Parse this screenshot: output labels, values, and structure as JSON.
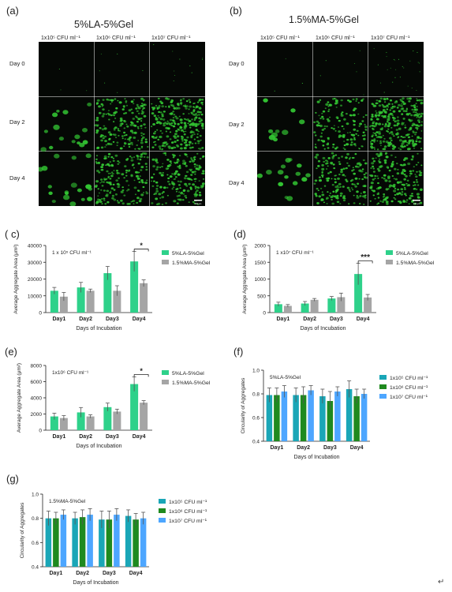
{
  "panels": {
    "a": {
      "letter": "(a)",
      "title": "5%LA-5%Gel",
      "columns": [
        "1x10⁵ CFU ml⁻¹",
        "1x10⁶ CFU ml⁻¹",
        "1x10⁷ CFU ml⁻¹"
      ],
      "rows": [
        "Day 0",
        "Day 2",
        "Day 4"
      ]
    },
    "b": {
      "letter": "(b)",
      "title": "1.5%MA-5%Gel",
      "columns": [
        "1x10⁵ CFU ml⁻¹",
        "1x10⁶ CFU ml⁻¹",
        "1x10⁷ CFU ml⁻¹"
      ],
      "rows": [
        "Day 0",
        "Day 2",
        "Day 4"
      ]
    },
    "c": {
      "letter": "( c)"
    },
    "d": {
      "letter": "(d)"
    },
    "e": {
      "letter": "(e)"
    },
    "f": {
      "letter": "(f)"
    },
    "g": {
      "letter": "(g)"
    }
  },
  "microscopy": {
    "scale_bar_label": "100 μm",
    "image_colors": {
      "background": "#050805",
      "colony": "#33c633"
    },
    "cell_density": {
      "a": [
        [
          0.01,
          0.02,
          0.03
        ],
        [
          0.25,
          0.6,
          0.85
        ],
        [
          0.3,
          0.55,
          0.6
        ]
      ],
      "b": [
        [
          0.01,
          0.02,
          0.08
        ],
        [
          0.15,
          0.45,
          0.95
        ],
        [
          0.25,
          0.55,
          0.6
        ]
      ]
    }
  },
  "chart_data": [
    {
      "id": "c",
      "type": "bar",
      "categories": [
        "Day1",
        "Day2",
        "Day3",
        "Day4"
      ],
      "series": [
        {
          "name": "5%LA-5%Gel",
          "values": [
            13000,
            15000,
            23500,
            30500
          ],
          "errors": [
            2000,
            3000,
            4000,
            6000
          ]
        },
        {
          "name": "1.5%MA-5%Gel",
          "values": [
            9500,
            13000,
            13000,
            17500
          ],
          "errors": [
            2500,
            1000,
            3000,
            2000
          ]
        }
      ],
      "annotation": "1 x 10⁵ CFU ml⁻¹",
      "significance": "*",
      "xlabel": "Days of Incubation",
      "ylabel": "Average Aggregate Area (μm²)",
      "ylim": [
        0,
        40000
      ],
      "yticks": [
        "0",
        "10000",
        "20000",
        "30000",
        "40000"
      ],
      "colors": [
        "#2ed18a",
        "#a5a5a5"
      ],
      "legend_position": "right"
    },
    {
      "id": "d",
      "type": "bar",
      "categories": [
        "Day1",
        "Day2",
        "Day3",
        "Day4"
      ],
      "series": [
        {
          "name": "5%LA-5%Gel",
          "values": [
            250,
            270,
            420,
            1150
          ],
          "errors": [
            60,
            60,
            60,
            320
          ]
        },
        {
          "name": "1.5%MA-5%Gel",
          "values": [
            200,
            380,
            460,
            450
          ],
          "errors": [
            40,
            40,
            120,
            90
          ]
        }
      ],
      "annotation": "1 x10⁷ CFU ml⁻¹",
      "significance": "***",
      "xlabel": "Days of Incubation",
      "ylabel": "Average Aggregate Area (μm²)",
      "ylim": [
        0,
        2000
      ],
      "yticks": [
        "0",
        "500",
        "1000",
        "1500",
        "2000"
      ],
      "colors": [
        "#2ed18a",
        "#a5a5a5"
      ],
      "legend_position": "right"
    },
    {
      "id": "e",
      "type": "bar",
      "categories": [
        "Day1",
        "Day2",
        "Day3",
        "Day4"
      ],
      "series": [
        {
          "name": "5%LA-5%Gel",
          "values": [
            1700,
            2200,
            2850,
            5700
          ],
          "errors": [
            400,
            600,
            500,
            900
          ]
        },
        {
          "name": "1.5%MA-5%Gel",
          "values": [
            1500,
            1700,
            2300,
            3400
          ],
          "errors": [
            300,
            200,
            300,
            250
          ]
        }
      ],
      "annotation": "1x10⁶ CFU ml⁻¹",
      "significance": "*",
      "xlabel": "Days of Incubation",
      "ylabel": "Average Aggregate Area (μm²)",
      "ylim": [
        0,
        8000
      ],
      "yticks": [
        "0",
        "2000",
        "4000",
        "6000",
        "8000"
      ],
      "colors": [
        "#2ed18a",
        "#a5a5a5"
      ],
      "legend_position": "right"
    },
    {
      "id": "f",
      "type": "bar",
      "categories": [
        "Day1",
        "Day2",
        "Day3",
        "Day4"
      ],
      "series": [
        {
          "name": "1x10⁵ CFU ml⁻¹",
          "values": [
            0.79,
            0.79,
            0.78,
            0.84
          ],
          "errors": [
            0.06,
            0.06,
            0.06,
            0.07
          ]
        },
        {
          "name": "1x10⁶ CFU ml⁻¹",
          "values": [
            0.79,
            0.79,
            0.74,
            0.78
          ],
          "errors": [
            0.06,
            0.07,
            0.08,
            0.06
          ]
        },
        {
          "name": "1x10⁷ CFU ml⁻¹",
          "values": [
            0.82,
            0.83,
            0.82,
            0.8
          ],
          "errors": [
            0.05,
            0.04,
            0.04,
            0.04
          ]
        }
      ],
      "annotation": "5%LA-5%Gel",
      "xlabel": "Days of Incubation",
      "ylabel": "Circularity of Aggregates",
      "ylim": [
        0.4,
        1.0
      ],
      "yticks": [
        "0.4",
        "0.6",
        "0.8",
        "1.0"
      ],
      "colors": [
        "#1aa6b7",
        "#1f8a1f",
        "#4da6ff"
      ],
      "legend_position": "right"
    },
    {
      "id": "g",
      "type": "bar",
      "categories": [
        "Day1",
        "Day2",
        "Day3",
        "Day4"
      ],
      "series": [
        {
          "name": "1x10⁵ CFU ml⁻¹",
          "values": [
            0.8,
            0.8,
            0.79,
            0.82
          ],
          "errors": [
            0.06,
            0.05,
            0.07,
            0.05
          ]
        },
        {
          "name": "1x10⁶ CFU ml⁻¹",
          "values": [
            0.8,
            0.81,
            0.79,
            0.79
          ],
          "errors": [
            0.05,
            0.06,
            0.07,
            0.05
          ]
        },
        {
          "name": "1x10⁷ CFU ml⁻¹",
          "values": [
            0.83,
            0.83,
            0.83,
            0.8
          ],
          "errors": [
            0.04,
            0.05,
            0.05,
            0.05
          ]
        }
      ],
      "annotation": "1.5%MA-5%Gel",
      "xlabel": "Days of Incubation",
      "ylabel": "Circularity of Aggregates",
      "ylim": [
        0.4,
        1.0
      ],
      "yticks": [
        "0.4",
        "0.6",
        "0.8",
        "1.0"
      ],
      "colors": [
        "#1aa6b7",
        "#1f8a1f",
        "#4da6ff"
      ],
      "legend_position": "right"
    }
  ],
  "footer_mark": "↵"
}
